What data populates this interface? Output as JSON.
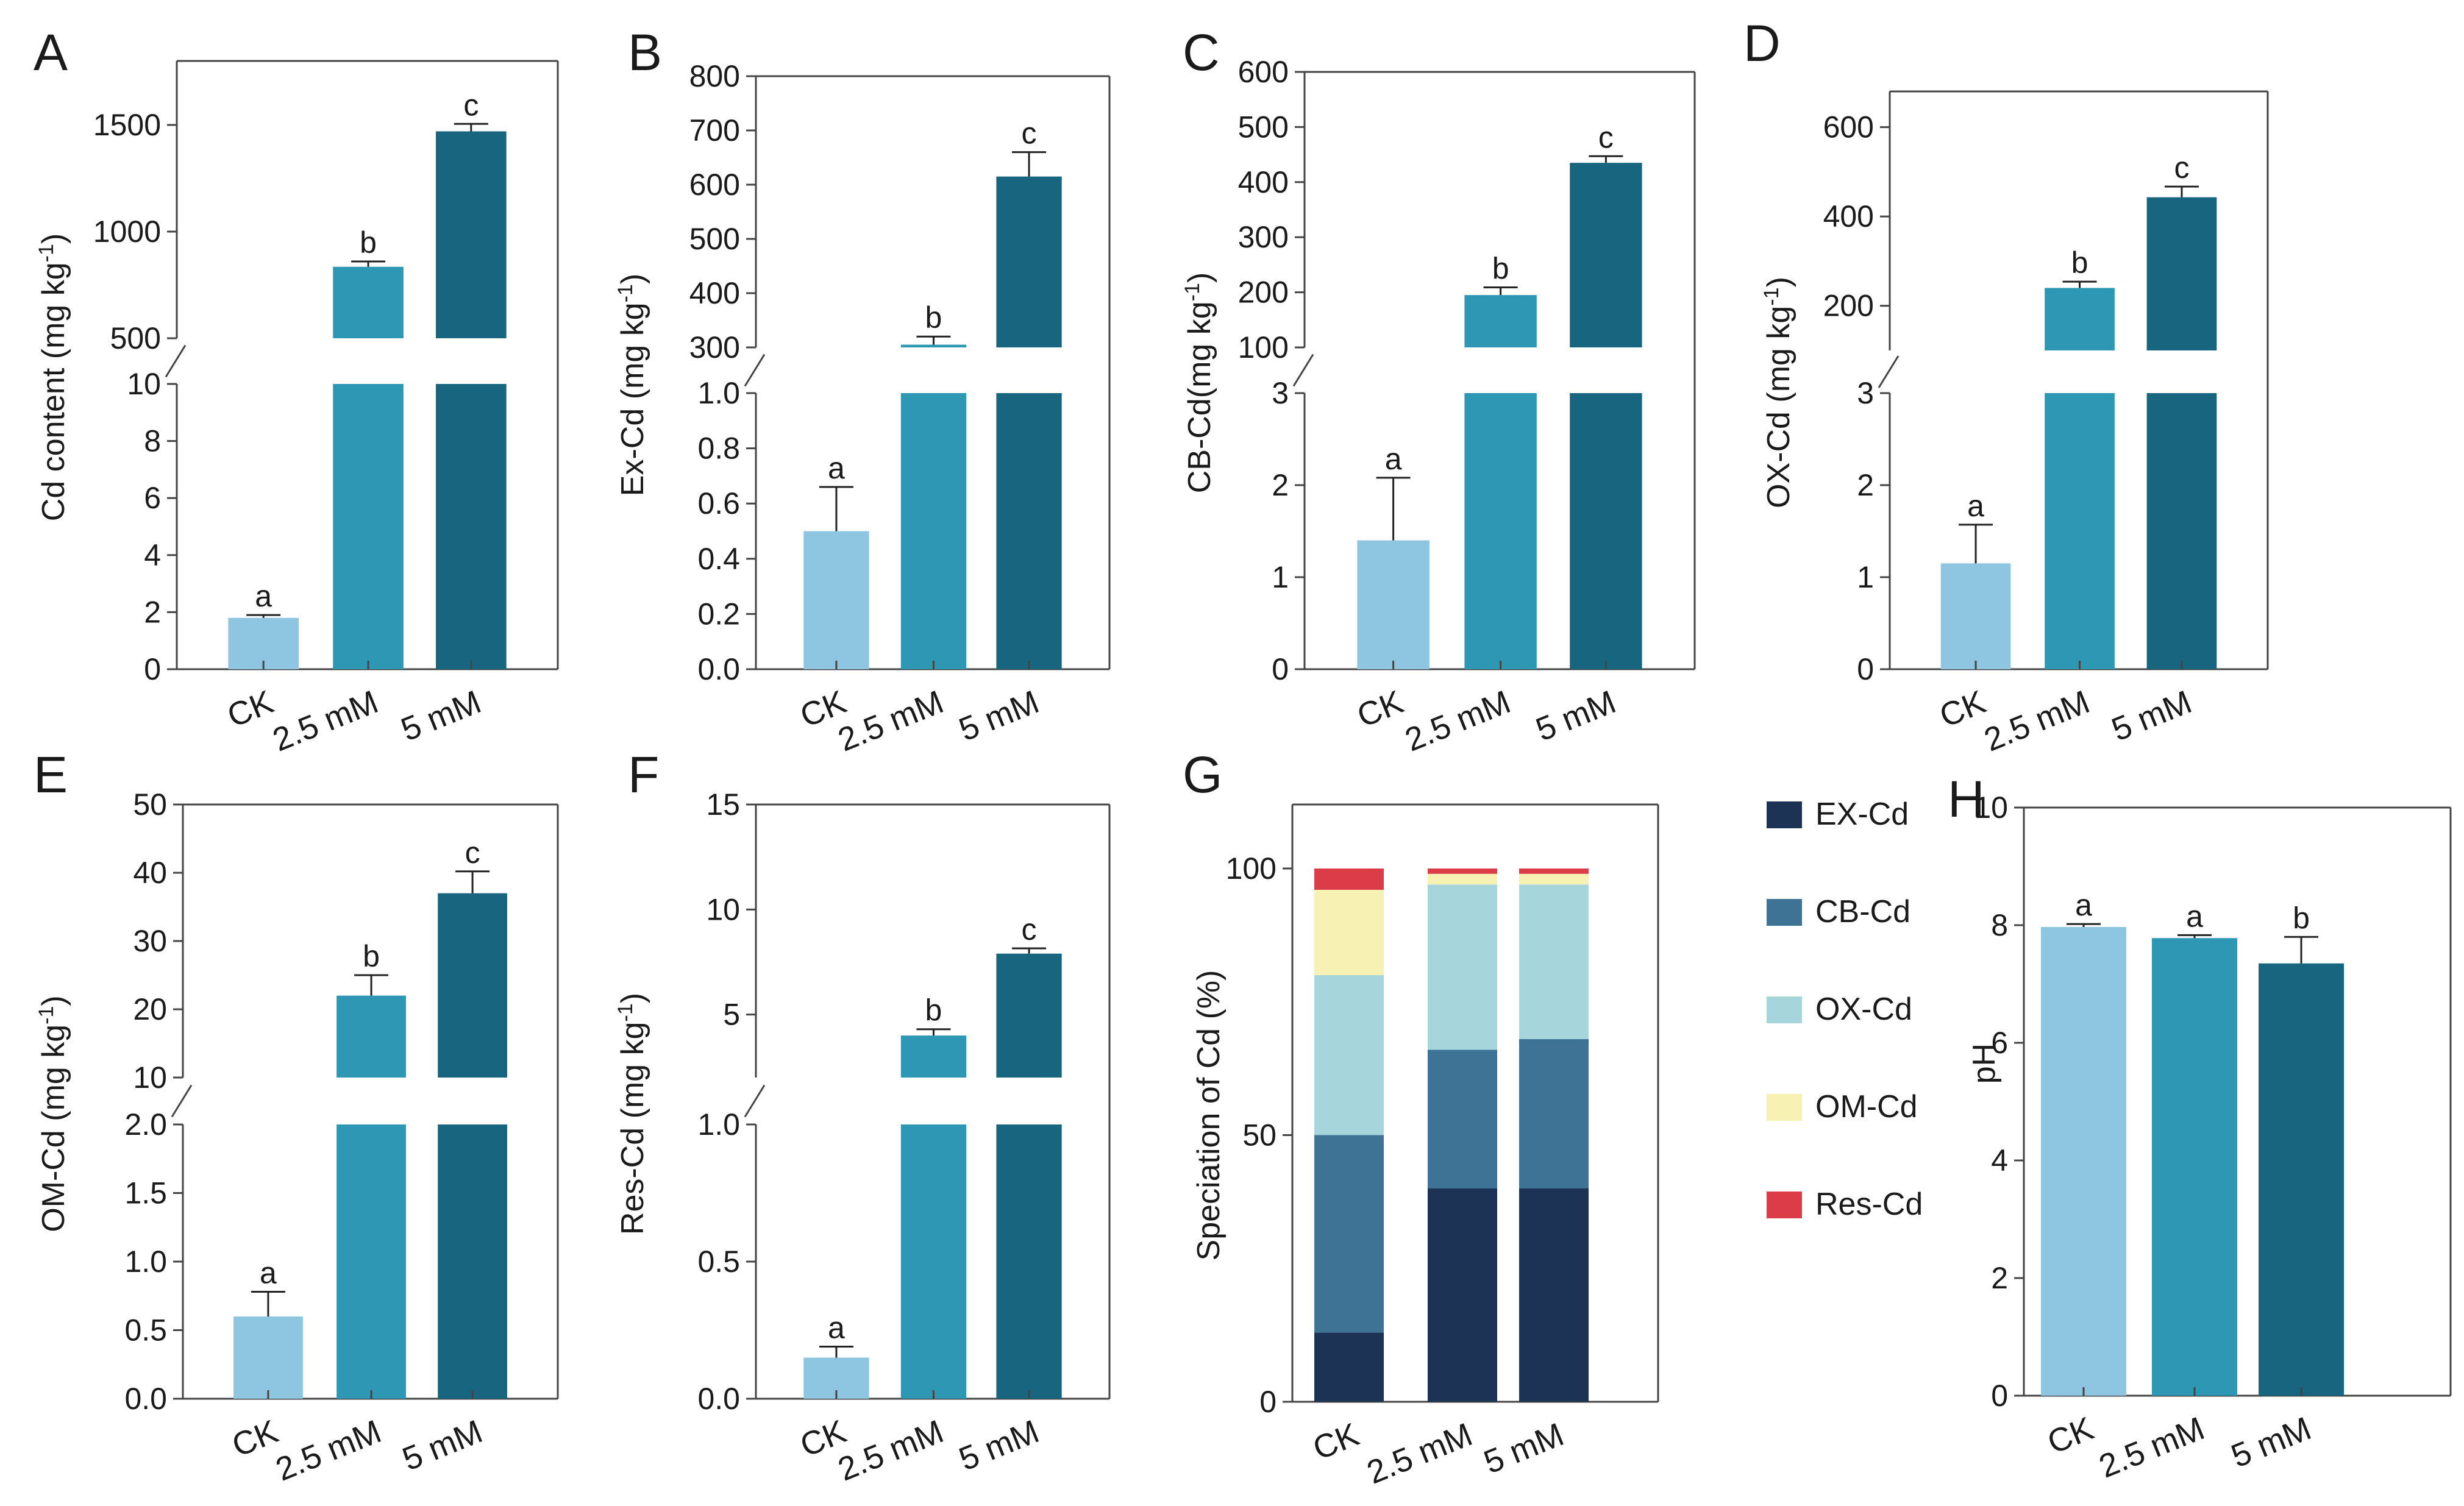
{
  "colors": {
    "CK": "#8ec5e0",
    "2.5 mM": "#2d97b4",
    "5 mM": "#17657f",
    "axis": "#444444",
    "errbar": "#222222"
  },
  "chart_data": [
    {
      "panel": "A",
      "type": "bar",
      "ylabel": "Cd content (mg kg-1)",
      "categories": [
        "CK",
        "2.5 mM",
        "5 mM"
      ],
      "values": [
        1.8,
        835,
        1470
      ],
      "errors": [
        0.1,
        25,
        35
      ],
      "significance": [
        "a",
        "b",
        "c"
      ],
      "broken_axis": true,
      "lower": {
        "ylim": [
          0,
          10
        ],
        "ticks": [
          "0",
          "2",
          "4",
          "6",
          "8",
          "10"
        ]
      },
      "upper": {
        "ylim": [
          500,
          1800
        ],
        "ticks": [
          "500",
          "1000",
          "1500"
        ]
      }
    },
    {
      "panel": "B",
      "type": "bar",
      "ylabel": "Ex-Cd (mg kg-1)",
      "categories": [
        "CK",
        "2.5 mM",
        "5 mM"
      ],
      "values": [
        0.5,
        305,
        615
      ],
      "errors": [
        0.16,
        15,
        45
      ],
      "significance": [
        "a",
        "b",
        "c"
      ],
      "broken_axis": true,
      "lower": {
        "ylim": [
          0,
          1.0
        ],
        "ticks": [
          "0.0",
          "0.2",
          "0.4",
          "0.6",
          "0.8",
          "1.0"
        ]
      },
      "upper": {
        "ylim": [
          300,
          800
        ],
        "ticks": [
          "300",
          "400",
          "500",
          "600",
          "700",
          "800"
        ]
      }
    },
    {
      "panel": "C",
      "type": "bar",
      "ylabel": "CB-Cd(mg kg-1)",
      "categories": [
        "CK",
        "2.5 mM",
        "5 mM"
      ],
      "values": [
        1.4,
        195,
        435
      ],
      "errors": [
        0.68,
        14,
        12
      ],
      "significance": [
        "a",
        "b",
        "c"
      ],
      "broken_axis": true,
      "lower": {
        "ylim": [
          0,
          3
        ],
        "ticks": [
          "0",
          "1",
          "2",
          "3"
        ]
      },
      "upper": {
        "ylim": [
          100,
          600
        ],
        "ticks": [
          "100",
          "200",
          "300",
          "400",
          "500",
          "600"
        ]
      }
    },
    {
      "panel": "D",
      "type": "bar",
      "ylabel": "OX-Cd (mg kg-1)",
      "categories": [
        "CK",
        "2.5 mM",
        "5 mM"
      ],
      "values": [
        1.15,
        240,
        443
      ],
      "errors": [
        0.42,
        14,
        24
      ],
      "significance": [
        "a",
        "b",
        "c"
      ],
      "broken_axis": true,
      "lower": {
        "ylim": [
          0,
          3
        ],
        "ticks": [
          "0",
          "1",
          "2",
          "3"
        ]
      },
      "upper": {
        "ylim": [
          100,
          680
        ],
        "ticks": [
          "200",
          "400",
          "600"
        ]
      }
    },
    {
      "panel": "E",
      "type": "bar",
      "ylabel": "OM-Cd (mg kg-1)",
      "categories": [
        "CK",
        "2.5 mM",
        "5 mM"
      ],
      "values": [
        0.6,
        22,
        37
      ],
      "errors": [
        0.18,
        3,
        3.2
      ],
      "significance": [
        "a",
        "b",
        "c"
      ],
      "broken_axis": true,
      "lower": {
        "ylim": [
          0,
          2.0
        ],
        "ticks": [
          "0.0",
          "0.5",
          "1.0",
          "1.5",
          "2.0"
        ]
      },
      "upper": {
        "ylim": [
          10,
          50
        ],
        "ticks": [
          "10",
          "20",
          "30",
          "40",
          "50"
        ]
      }
    },
    {
      "panel": "F",
      "type": "bar",
      "ylabel": "Res-Cd (mg kg-1)",
      "categories": [
        "CK",
        "2.5 mM",
        "5 mM"
      ],
      "values": [
        0.15,
        4.0,
        7.9
      ],
      "errors": [
        0.04,
        0.3,
        0.25
      ],
      "significance": [
        "a",
        "b",
        "c"
      ],
      "broken_axis": true,
      "lower": {
        "ylim": [
          0,
          1.0
        ],
        "ticks": [
          "0.0",
          "0.5",
          "1.0"
        ]
      },
      "upper": {
        "ylim": [
          2,
          15
        ],
        "ticks": [
          "5",
          "10",
          "15"
        ]
      }
    },
    {
      "panel": "G",
      "type": "stacked-bar",
      "ylabel": "Speciation of Cd (%)",
      "categories": [
        "CK",
        "2.5 mM",
        "5 mM"
      ],
      "ylim": [
        0,
        112
      ],
      "ticks": [
        "0",
        "50",
        "100"
      ],
      "series": [
        {
          "name": "EX-Cd",
          "color": "#1c3356",
          "values": [
            13,
            40,
            40
          ]
        },
        {
          "name": "CB-Cd",
          "color": "#3f7396",
          "values": [
            37,
            26,
            28
          ]
        },
        {
          "name": "OX-Cd",
          "color": "#a6d6dc",
          "values": [
            30,
            31,
            29
          ]
        },
        {
          "name": "OM-Cd",
          "color": "#f8f1b4",
          "values": [
            16,
            2,
            2
          ]
        },
        {
          "name": "Res-Cd",
          "color": "#dc3b48",
          "values": [
            4,
            1,
            1
          ]
        }
      ],
      "legend": "right"
    },
    {
      "panel": "H",
      "type": "bar",
      "ylabel": "pH",
      "categories": [
        "CK",
        "2.5 mM",
        "5 mM"
      ],
      "values": [
        7.97,
        7.78,
        7.35
      ],
      "errors": [
        0.05,
        0.05,
        0.45
      ],
      "significance": [
        "a",
        "a",
        "b"
      ],
      "ylim": [
        0,
        10
      ],
      "ticks": [
        "0",
        "2",
        "4",
        "6",
        "8",
        "10"
      ]
    }
  ]
}
